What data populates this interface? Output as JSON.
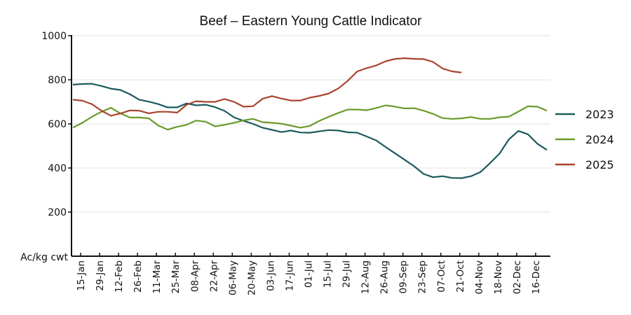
{
  "chart_data": {
    "type": "line",
    "title": "Beef – Eastern Young Cattle Indicator",
    "xlabel": "",
    "ylabel": "Ac/kg cwt",
    "ylim": [
      0,
      1000
    ],
    "yticks": [
      200,
      400,
      600,
      800,
      1000
    ],
    "grid": true,
    "legend_position": "right",
    "x_frequency": "weekly",
    "x_start_week": "08-Jan",
    "xtick_labels": [
      "15-Jan",
      "29-Jan",
      "12-Feb",
      "26-Feb",
      "11-Mar",
      "25-Mar",
      "08-Apr",
      "22-Apr",
      "06-May",
      "20-May",
      "03-Jun",
      "17-Jun",
      "01-Jul",
      "15-Jul",
      "29-Jul",
      "12-Aug",
      "26-Aug",
      "09-Sep",
      "23-Sep",
      "07-Oct",
      "21-Oct",
      "04-Nov",
      "18-Nov",
      "02-Dec",
      "16-Dec"
    ],
    "series": [
      {
        "name": "2023",
        "color": "#1b5a5e",
        "values": [
          778,
          781,
          782,
          772,
          760,
          754,
          735,
          710,
          701,
          690,
          675,
          675,
          693,
          684,
          687,
          676,
          659,
          630,
          614,
          600,
          583,
          573,
          563,
          570,
          561,
          560,
          566,
          572,
          570,
          562,
          560,
          543,
          525,
          495,
          466,
          437,
          408,
          373,
          358,
          363,
          355,
          354,
          363,
          382,
          422,
          465,
          530,
          568,
          553,
          510,
          482
        ]
      },
      {
        "name": "2024",
        "color": "#6b9a2a",
        "values": [
          583,
          605,
          632,
          655,
          673,
          648,
          629,
          629,
          625,
          593,
          574,
          587,
          596,
          615,
          610,
          589,
          596,
          605,
          616,
          623,
          608,
          605,
          601,
          592,
          583,
          591,
          614,
          632,
          650,
          665,
          665,
          662,
          672,
          684,
          678,
          670,
          671,
          660,
          645,
          626,
          623,
          625,
          631,
          623,
          623,
          630,
          633,
          656,
          680,
          678,
          660
        ]
      },
      {
        "name": "2025",
        "color": "#a8432f",
        "values": [
          710,
          705,
          690,
          660,
          637,
          647,
          661,
          660,
          648,
          655,
          655,
          651,
          687,
          703,
          700,
          700,
          713,
          700,
          678,
          680,
          714,
          726,
          715,
          706,
          706,
          719,
          727,
          738,
          761,
          796,
          838,
          853,
          865,
          884,
          895,
          898,
          895,
          894,
          881,
          851,
          838,
          833
        ]
      }
    ]
  }
}
